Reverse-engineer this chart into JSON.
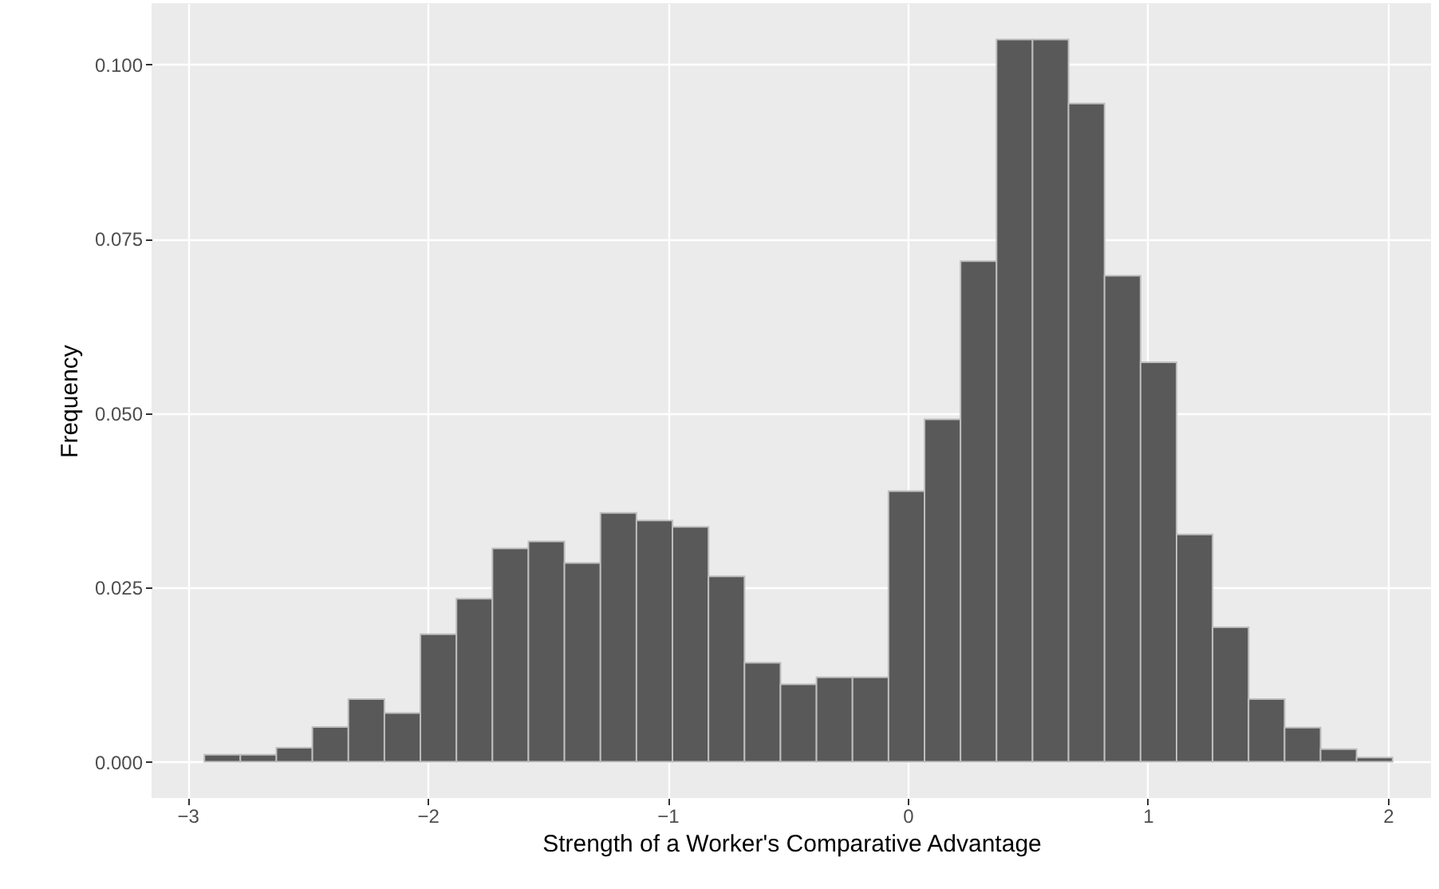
{
  "chart_data": {
    "type": "histogram",
    "xlabel": "Strength of a Worker's Comparative Advantage",
    "ylabel": "Frequency",
    "bins": [
      -2.93,
      -2.78,
      -2.63,
      -2.48,
      -2.33,
      -2.18,
      -2.03,
      -1.88,
      -1.73,
      -1.58,
      -1.43,
      -1.28,
      -1.13,
      -0.98,
      -0.83,
      -0.68,
      -0.53,
      -0.38,
      -0.23,
      -0.08,
      0.07,
      0.22,
      0.37,
      0.52,
      0.67,
      0.82,
      0.97,
      1.12,
      1.27,
      1.42,
      1.57,
      1.72,
      1.87,
      2.02
    ],
    "values": [
      0.001,
      0.001,
      0.002,
      0.005,
      0.009,
      0.007,
      0.0183,
      0.0234,
      0.0306,
      0.0316,
      0.0285,
      0.0357,
      0.0346,
      0.0337,
      0.0266,
      0.0142,
      0.0111,
      0.0121,
      0.0121,
      0.0388,
      0.0491,
      0.0718,
      0.1036,
      0.1036,
      0.0944,
      0.0697,
      0.0573,
      0.0326,
      0.0193,
      0.009,
      0.0049,
      0.0018,
      0.0006
    ],
    "color": "#595959",
    "xlim": [
      -3.15,
      2.18
    ],
    "ylim": [
      -0.0052,
      0.1088
    ],
    "xticks": [
      {
        "value": -3,
        "label": "−3"
      },
      {
        "value": -2,
        "label": "−2"
      },
      {
        "value": -1,
        "label": "−1"
      },
      0,
      1,
      2
    ],
    "yticks": [
      {
        "value": 0,
        "label": "0.000"
      },
      {
        "value": 0.025,
        "label": "0.025"
      },
      {
        "value": 0.05,
        "label": "0.050"
      },
      {
        "value": 0.075,
        "label": "0.075"
      },
      {
        "value": 0.1,
        "label": "0.100"
      }
    ],
    "grid": true
  }
}
